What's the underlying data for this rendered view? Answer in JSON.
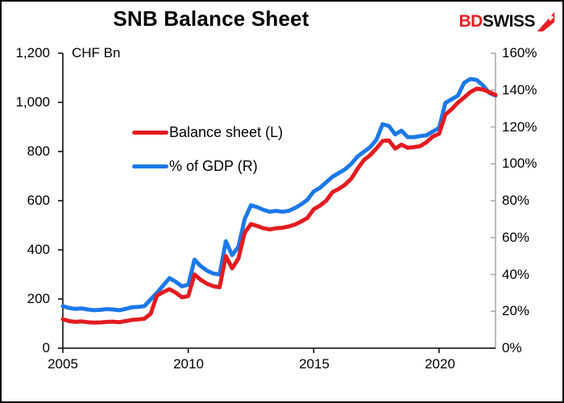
{
  "header": {
    "title": "SNB Balance Sheet",
    "logo": {
      "prefix": "BD",
      "suffix": "SWISS",
      "prefix_color": "#e31e24",
      "suffix_color": "#111111",
      "arrow_color": "#e31e24"
    }
  },
  "legend": {
    "items": [
      {
        "label": "Balance sheet (L)",
        "color": "#e31b20"
      },
      {
        "label": "% of GDP (R)",
        "color": "#1c78e8"
      }
    ]
  },
  "chart_data": {
    "type": "line",
    "title": "SNB Balance Sheet",
    "grid": false,
    "legend_position": "upper-left-inside",
    "x_start": 2005.0,
    "x_step": 0.25,
    "x_range": [
      2005.0,
      2022.25
    ],
    "x_ticks": [
      2005,
      2010,
      2015,
      2020
    ],
    "x_tick_labels": [
      "2005",
      "2010",
      "2015",
      "2020"
    ],
    "left_axis": {
      "label": "CHF Bn",
      "range": [
        0,
        1200
      ],
      "tick_labels": [
        "0",
        "200",
        "400",
        "600",
        "800",
        "1,000",
        "1,200"
      ],
      "color": "#000000"
    },
    "right_axis": {
      "label": "",
      "range": [
        0,
        160
      ],
      "tick_labels": [
        "0%",
        "20%",
        "40%",
        "60%",
        "80%",
        "100%",
        "120%",
        "140%",
        "160%"
      ],
      "color": "#a6a6a6"
    },
    "series": [
      {
        "name": "% of GDP (R)",
        "axis": "right",
        "color": "#1c78e8",
        "values": [
          22.8,
          21.8,
          21.3,
          21.6,
          21.0,
          20.6,
          20.8,
          21.2,
          21.0,
          20.6,
          21.3,
          22.2,
          22.4,
          22.8,
          26.5,
          30.0,
          34.0,
          38.0,
          36.0,
          33.5,
          34.5,
          48.0,
          44.5,
          42.0,
          40.5,
          40.0,
          58.0,
          50.5,
          55.0,
          70.0,
          77.5,
          76.5,
          75.0,
          74.0,
          74.5,
          74.0,
          74.5,
          76.0,
          78.0,
          80.5,
          85.0,
          87.0,
          90.0,
          93.0,
          95.0,
          97.0,
          100.0,
          104.0,
          106.5,
          109.0,
          113.0,
          121.5,
          120.5,
          116.0,
          118.0,
          114.5,
          114.5,
          115.0,
          115.5,
          117.5,
          119.5,
          133.0,
          135.0,
          137.0,
          144.0,
          146.0,
          145.5,
          142.5,
          138.5,
          137.0
        ]
      },
      {
        "name": "Balance sheet (L)",
        "axis": "left",
        "color": "#e31b20",
        "values": [
          118,
          110,
          107,
          109,
          106,
          104,
          105,
          107,
          108,
          106,
          110,
          115,
          117,
          120,
          140,
          214,
          228,
          240,
          226,
          207,
          212,
          300,
          278,
          262,
          252,
          248,
          375,
          325,
          365,
          470,
          505,
          497,
          488,
          483,
          488,
          490,
          495,
          503,
          515,
          530,
          565,
          580,
          600,
          635,
          648,
          665,
          690,
          730,
          765,
          785,
          812,
          843,
          845,
          812,
          828,
          815,
          818,
          822,
          838,
          861,
          872,
          950,
          972,
          999,
          1020,
          1042,
          1056,
          1052,
          1042,
          1030
        ]
      }
    ]
  }
}
